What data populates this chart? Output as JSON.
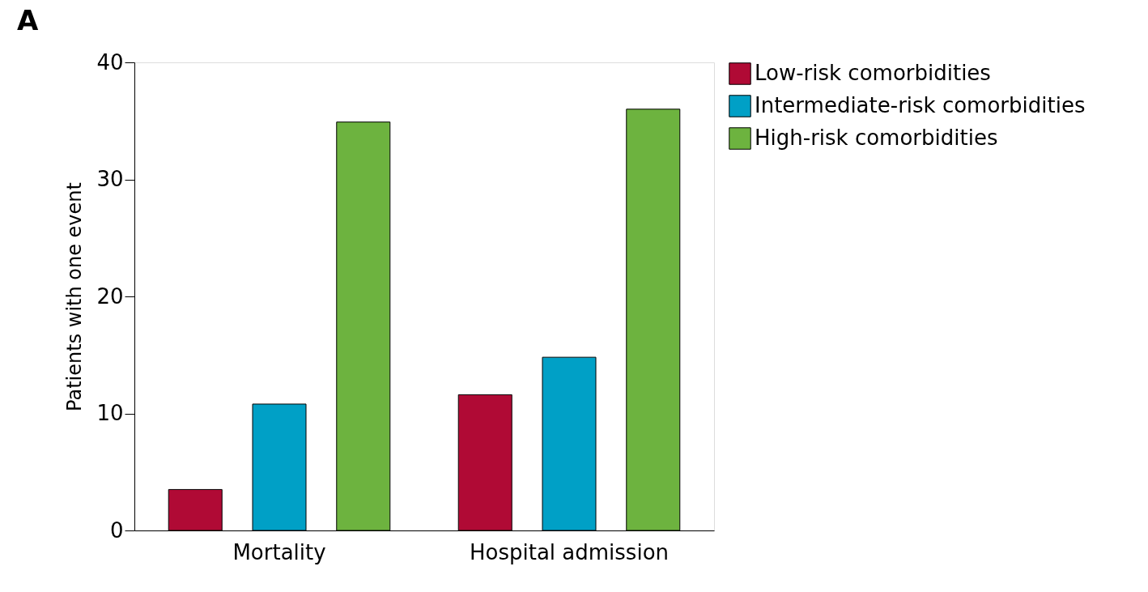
{
  "chart_data": {
    "type": "bar",
    "title": "A",
    "ylabel": "Patients with one event",
    "categories": [
      "Mortality",
      "Hospital admission"
    ],
    "series": [
      {
        "name": "Low-risk comorbidities",
        "color": "#b00a35",
        "values": [
          3.5,
          11.6
        ]
      },
      {
        "name": "Intermediate-risk comorbidities",
        "color": "#00a0c6",
        "values": [
          10.8,
          14.8
        ]
      },
      {
        "name": "High-risk comorbidities",
        "color": "#6db33f",
        "values": [
          34.9,
          36.0
        ]
      }
    ],
    "ylim": [
      0,
      40
    ],
    "yticks": [
      0,
      10,
      20,
      30,
      40
    ],
    "grid": false,
    "legend": "top right"
  }
}
